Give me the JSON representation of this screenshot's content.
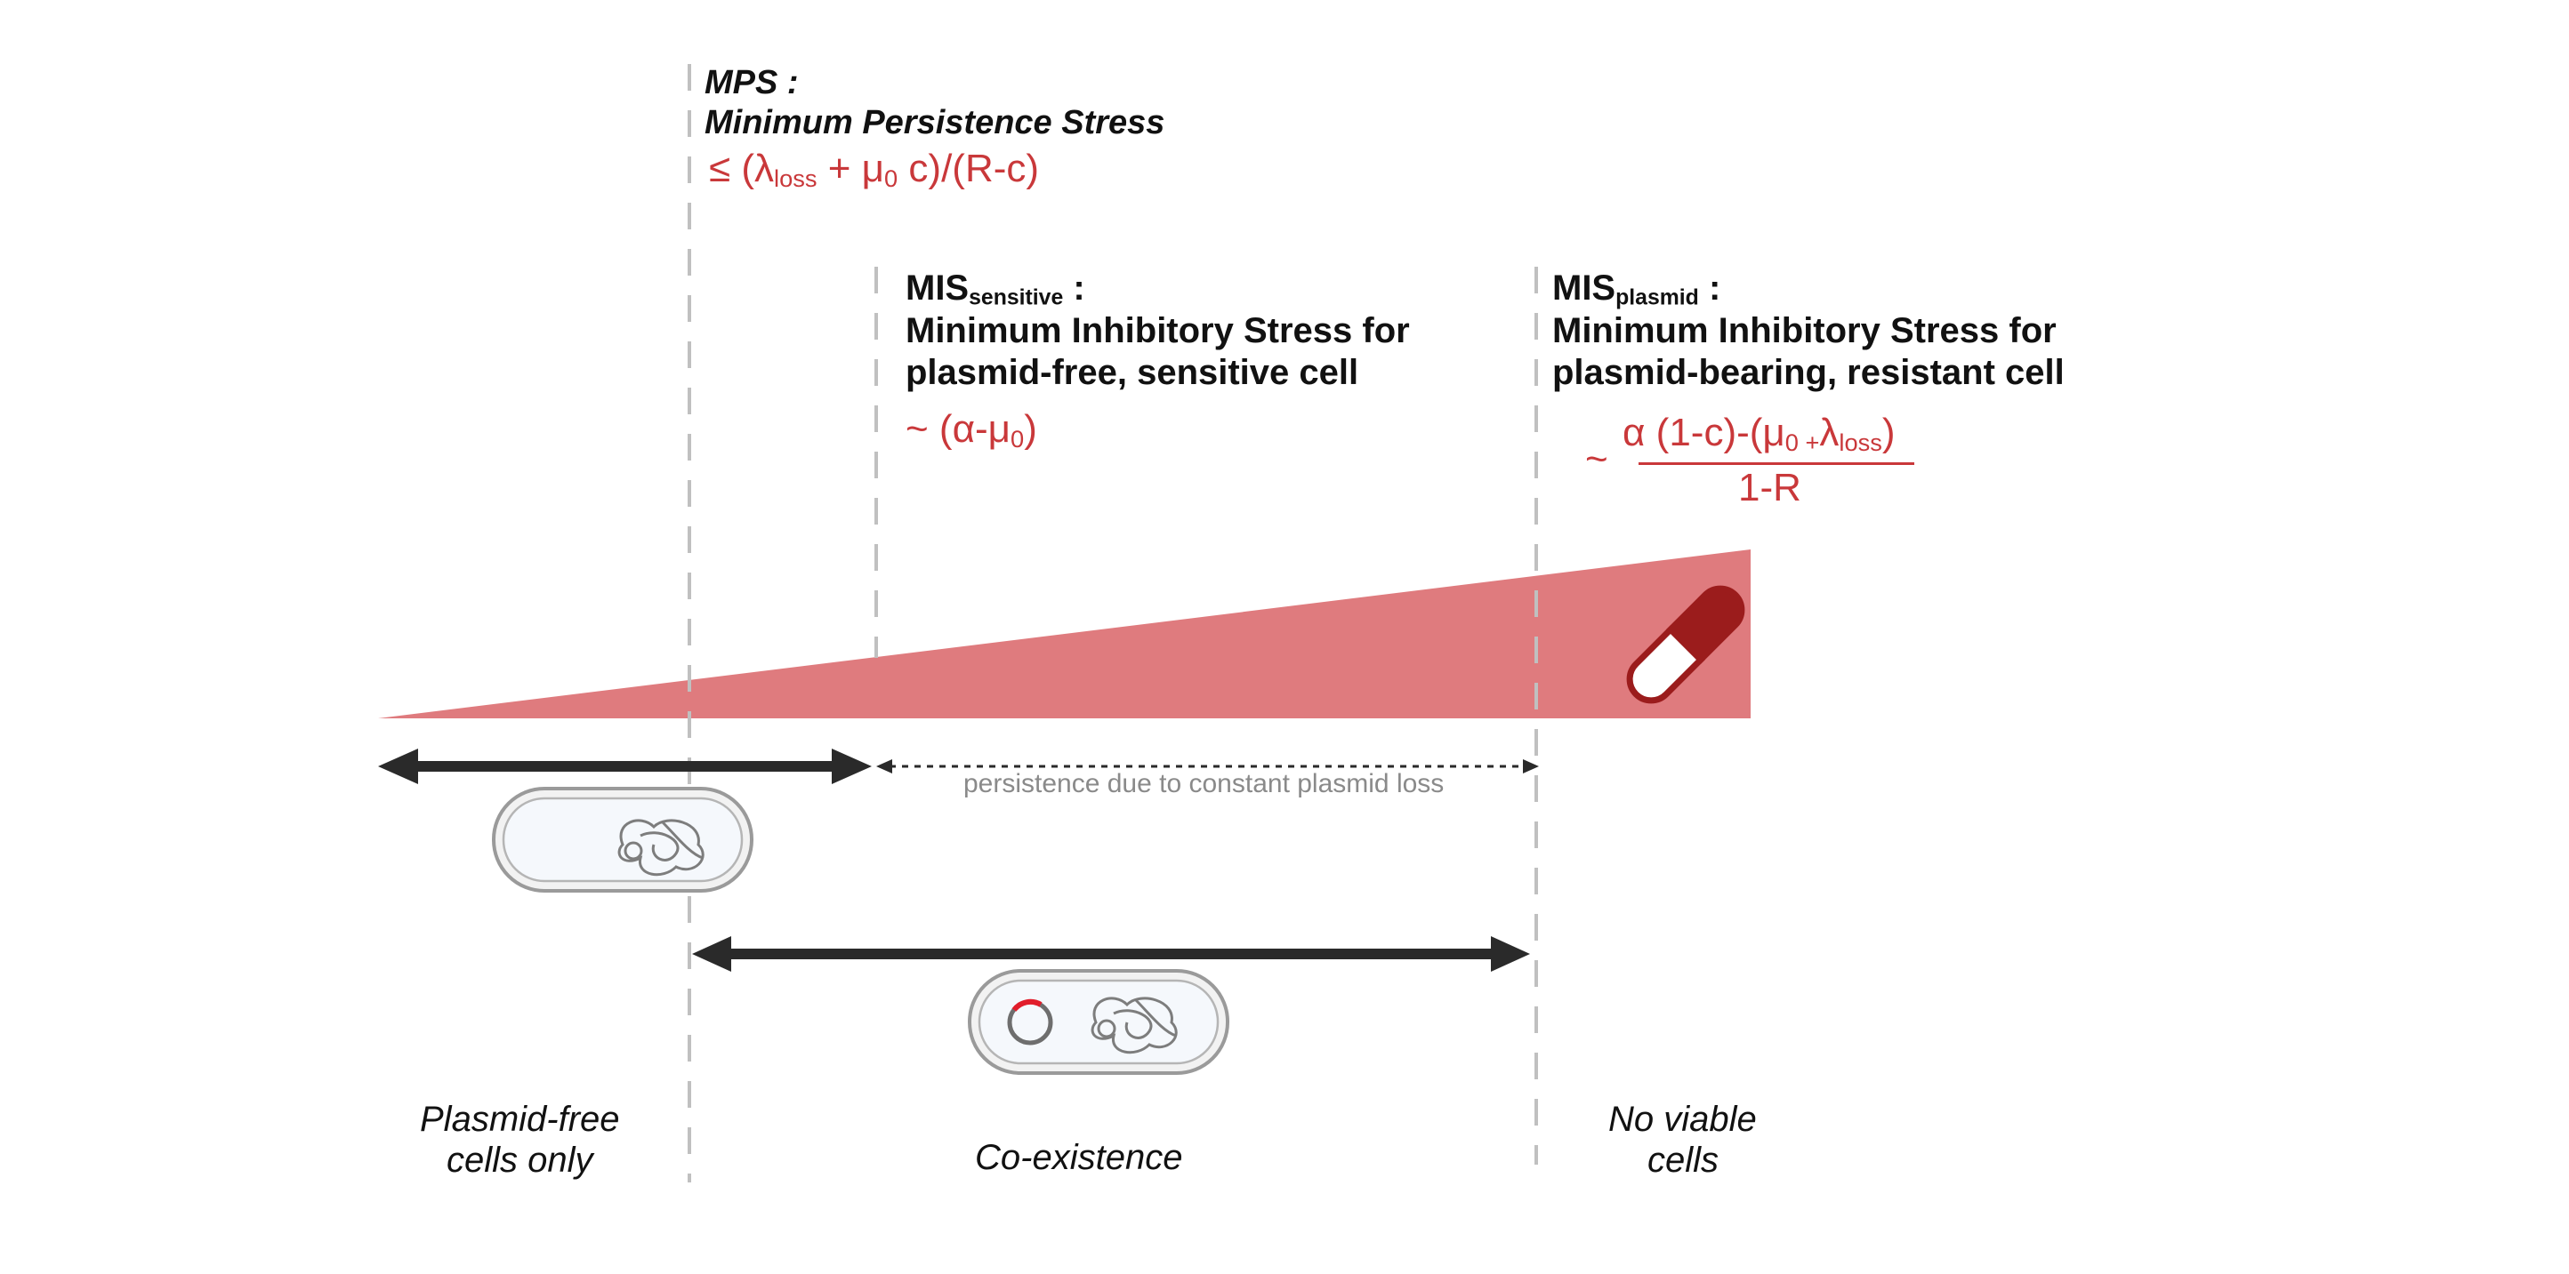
{
  "mps": {
    "abbr": "MPS :",
    "full": "Minimum Persistence Stress",
    "formula_lead": "≤ (λ",
    "formula_sub1": "loss",
    "formula_mid": " + μ",
    "formula_sub2": "0",
    "formula_tail": " c)/(R-c)"
  },
  "mis_sensitive": {
    "abbr": "MIS",
    "abbr_sub": "sensitive",
    "colon": " :",
    "line1": "Minimum Inhibitory Stress for",
    "line2": "plasmid-free, sensitive cell",
    "formula_lead": "~ (α-μ",
    "formula_sub": "0",
    "formula_tail": ")"
  },
  "mis_plasmid": {
    "abbr": "MIS",
    "abbr_sub": "plasmid",
    "colon": " :",
    "line1": "Minimum Inhibitory Stress for",
    "line2": "plasmid-bearing, resistant cell",
    "tilde": "~",
    "num_lead": "α (1-c)-(μ",
    "num_sub1": "0 +",
    "num_mid": "λ",
    "num_sub2": "loss",
    "num_tail": ")",
    "denominator": "1-R"
  },
  "persistence_label": "persistence due to constant plasmid loss",
  "regions": {
    "plasmid_free_line1": "Plasmid-free",
    "plasmid_free_line2": "cells only",
    "coexistence": "Co-existence",
    "no_viable_line1": "No viable",
    "no_viable_line2": "cells"
  },
  "colors": {
    "gradient": "#df7b7e",
    "formula": "#c9383a",
    "pill_dark": "#9b1c1c",
    "arrow": "#2a2a2a",
    "dashed": "#c0c0c0"
  },
  "icons": [
    "pill-icon",
    "cell-icon",
    "plasmid-ring-icon",
    "chromosome-icon"
  ]
}
